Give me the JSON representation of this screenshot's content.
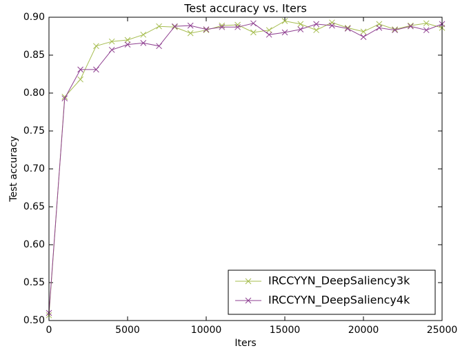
{
  "chart_data": {
    "type": "line",
    "title": "Test accuracy  vs. Iters",
    "x_label": "Iters",
    "y_label": "Test accuracy",
    "x": [
      0,
      1000,
      2000,
      3000,
      4000,
      5000,
      6000,
      7000,
      8000,
      9000,
      10000,
      11000,
      12000,
      13000,
      14000,
      15000,
      16000,
      17000,
      18000,
      19000,
      20000,
      21000,
      22000,
      23000,
      24000,
      25000
    ],
    "series": [
      {
        "name": "IRCCYYN_DeepSaliency3k",
        "color": "#a5bc4e",
        "values": [
          0.507,
          0.795,
          0.818,
          0.862,
          0.868,
          0.87,
          0.877,
          0.888,
          0.887,
          0.879,
          0.883,
          0.889,
          0.89,
          0.88,
          0.883,
          0.895,
          0.891,
          0.883,
          0.893,
          0.886,
          0.881,
          0.891,
          0.884,
          0.889,
          0.892,
          0.886
        ]
      },
      {
        "name": "IRCCYYN_DeepSaliency4k",
        "color": "#8e3f90",
        "values": [
          0.51,
          0.793,
          0.831,
          0.831,
          0.857,
          0.864,
          0.866,
          0.862,
          0.888,
          0.889,
          0.884,
          0.887,
          0.887,
          0.892,
          0.877,
          0.88,
          0.884,
          0.891,
          0.889,
          0.885,
          0.874,
          0.886,
          0.883,
          0.888,
          0.883,
          0.891
        ]
      }
    ],
    "xlim": [
      0,
      25000
    ],
    "xticks": [
      0,
      5000,
      10000,
      15000,
      20000,
      25000
    ],
    "ylim": [
      0.5,
      0.9
    ],
    "yticks": [
      {
        "value": 0.5,
        "label": "0.50"
      },
      0.55,
      {
        "value": 0.6,
        "label": "0.60"
      },
      0.65,
      {
        "value": 0.7,
        "label": "0.70"
      },
      0.75,
      {
        "value": 0.8,
        "label": "0.80"
      },
      0.85,
      {
        "value": 0.9,
        "label": "0.90"
      }
    ],
    "legend": "lower right",
    "grid": false
  }
}
